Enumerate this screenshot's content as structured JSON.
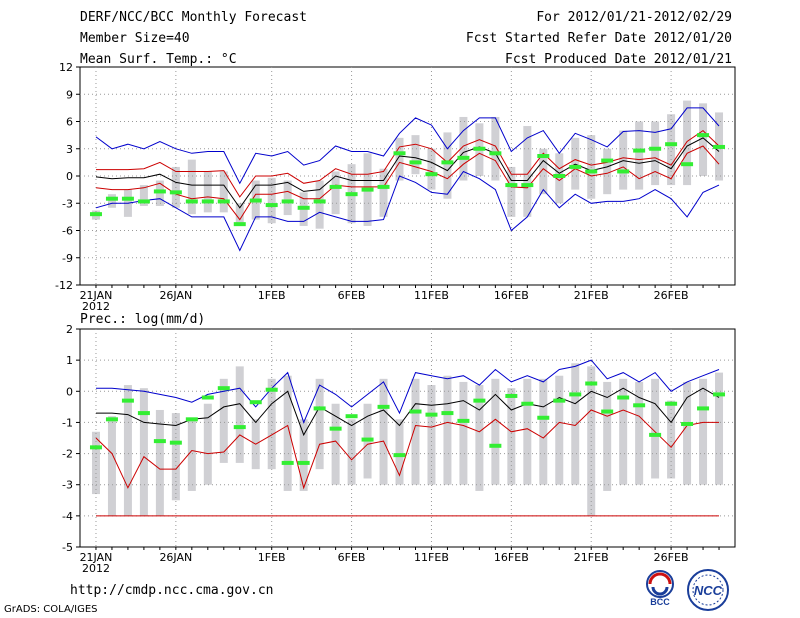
{
  "header": {
    "left_line1": "DERF/NCC/BCC Monthly Forecast",
    "left_line2": "Member Size=40",
    "left_line3": "Mean Surf. Temp.: °C",
    "right_line1": "For 2012/01/21-2012/02/29",
    "right_line2": "Fcst Started Refer Date 2012/01/20",
    "right_line3": "Fcst Produced Date 2012/01/21"
  },
  "footer": {
    "url": "http://cmdp.ncc.cma.gov.cn",
    "credit": "GrADS: COLA/IGES"
  },
  "logos": {
    "bcc": "BCC",
    "ncc": "NCC"
  },
  "colors": {
    "max_min": "#0000cc",
    "spread": "#cc0000",
    "mean": "#000000",
    "obs": "#33ee33",
    "box": "#d0d0d4",
    "grid": "#999999"
  },
  "chart_data": [
    {
      "type": "line",
      "title": "Mean Surf. Temp.: °C",
      "ylim": [
        -12,
        12
      ],
      "yticks": [
        "12",
        "9",
        "6",
        "3",
        "0",
        "-3",
        "-6",
        "-9",
        "-12"
      ],
      "xticklabels": [
        "21JAN",
        "26JAN",
        "1FEB",
        "6FEB",
        "11FEB",
        "16FEB",
        "21FEB",
        "26FEB"
      ],
      "year_label": "2012",
      "x": [
        1,
        2,
        3,
        4,
        5,
        6,
        7,
        8,
        9,
        10,
        11,
        12,
        13,
        14,
        15,
        16,
        17,
        18,
        19,
        20,
        21,
        22,
        23,
        24,
        25,
        26,
        27,
        28,
        29,
        30,
        31,
        32,
        33,
        34,
        35,
        36,
        37,
        38,
        39,
        40
      ],
      "series": [
        {
          "name": "max",
          "values": [
            4.3,
            3,
            3.5,
            3,
            3.8,
            3,
            2.5,
            2.7,
            2.7,
            -0.8,
            2.5,
            2.2,
            2.7,
            1.2,
            1.7,
            3.3,
            2.7,
            2.7,
            2.2,
            4.7,
            6.4,
            5.6,
            3,
            5,
            6.4,
            6.4,
            2.7,
            4.2,
            5,
            2.5,
            4.7,
            4,
            3.2,
            4.9,
            5,
            4.8,
            5.2,
            7.5,
            7.5,
            5.5
          ]
        },
        {
          "name": "upper",
          "values": [
            0.7,
            0.7,
            0.7,
            0.8,
            1.5,
            0.5,
            0.5,
            0.5,
            0.6,
            -2.3,
            0,
            0,
            0.3,
            -0.8,
            -0.5,
            0.8,
            0.2,
            0.2,
            0.5,
            3.2,
            3.5,
            3,
            1.5,
            3.3,
            4,
            3.3,
            0.2,
            0.2,
            2.5,
            0.8,
            1.8,
            1.2,
            1.5,
            2,
            1.8,
            2,
            1.2,
            3.8,
            5,
            3.3
          ]
        },
        {
          "name": "mean",
          "values": [
            -0.1,
            -0.3,
            -0.2,
            -0.2,
            0.2,
            -0.7,
            -1,
            -1,
            -1,
            -3.5,
            -1,
            -1,
            -0.7,
            -1.7,
            -1.5,
            0,
            -0.5,
            -0.5,
            -0.5,
            2.2,
            2,
            1.5,
            0.6,
            2.6,
            3.2,
            2.5,
            -0.5,
            -0.5,
            1.7,
            0.3,
            1.3,
            0.6,
            1,
            1.7,
            1.4,
            1.7,
            0.8,
            3.3,
            4.2,
            2.7
          ]
        },
        {
          "name": "lower",
          "values": [
            -1.3,
            -1.5,
            -1.5,
            -1.3,
            -0.8,
            -2,
            -2.5,
            -2.3,
            -2.5,
            -4.8,
            -2,
            -2,
            -1.7,
            -2.5,
            -2.5,
            -1,
            -1.2,
            -1.2,
            -1.2,
            1.5,
            1,
            0.5,
            -0.3,
            1.3,
            2.5,
            1.7,
            -1.2,
            -1.3,
            0.8,
            -0.5,
            0.8,
            0,
            0.3,
            1,
            -0.3,
            0.5,
            -0.3,
            2.5,
            3.3,
            1.3
          ]
        },
        {
          "name": "min",
          "values": [
            -3.5,
            -3,
            -3,
            -2.7,
            -2.5,
            -3.5,
            -4.5,
            -4.5,
            -4.5,
            -8.2,
            -4.5,
            -4.5,
            -5,
            -5,
            -4,
            -4.5,
            -5,
            -5,
            -4.8,
            0,
            -0.7,
            -1.8,
            -2,
            0.5,
            -0.3,
            -1.5,
            -6,
            -4.5,
            -1.5,
            -3.5,
            -2,
            -3,
            -2.8,
            -2.8,
            -2.5,
            -1.5,
            -2.5,
            -4.5,
            -1.8,
            -1
          ]
        },
        {
          "name": "obs",
          "values": [
            -4.2,
            -2.5,
            -2.5,
            -2.8,
            -1.7,
            -1.8,
            -2.8,
            -2.8,
            -2.8,
            -5.3,
            -2.7,
            -3.2,
            -2.8,
            -3.5,
            -2.8,
            -1.2,
            -2,
            -1.5,
            -1.2,
            2.5,
            1.5,
            0.2,
            1.5,
            2,
            3,
            2.5,
            -1,
            -1,
            2.2,
            0,
            1,
            0.5,
            1.7,
            0.5,
            2.8,
            3,
            3.5,
            1.3,
            4.5,
            3.2
          ]
        },
        {
          "name": "box_top",
          "values": [
            -3.8,
            -2,
            -1.5,
            -1,
            -0.5,
            1,
            1.8,
            0.5,
            0.5,
            -3,
            -0.5,
            -0.2,
            -0.5,
            -1.8,
            -0.5,
            0.5,
            1.3,
            2.5,
            0.8,
            4.2,
            4.5,
            3,
            4.8,
            6.5,
            5.8,
            6.5,
            1,
            5.5,
            3,
            2.5,
            4.2,
            4.5,
            3,
            5,
            6,
            6,
            6.8,
            8.3,
            8,
            7
          ]
        },
        {
          "name": "box_bottom",
          "values": [
            -4.8,
            -3.5,
            -4.5,
            -3.3,
            -3.3,
            -3.5,
            -4.2,
            -4,
            -4,
            -5.5,
            -4.8,
            -5.2,
            -4.3,
            -5.5,
            -5.8,
            -4.2,
            -5.2,
            -5.5,
            -4.5,
            -0.5,
            0.2,
            -1.5,
            -2.5,
            -0.5,
            0,
            -0.5,
            -4.5,
            -4.5,
            -2,
            -3,
            -1.5,
            -2.5,
            -2,
            -1.5,
            -1.5,
            -1,
            -1,
            -1,
            0,
            -0.5
          ]
        }
      ]
    },
    {
      "type": "line",
      "title": "Prec.: log(mm/d)",
      "ylim": [
        -5,
        2
      ],
      "yticks": [
        "2",
        "1",
        "0",
        "-1",
        "-2",
        "-3",
        "-4",
        "-5"
      ],
      "xticklabels": [
        "21JAN",
        "26JAN",
        "1FEB",
        "6FEB",
        "11FEB",
        "16FEB",
        "21FEB",
        "26FEB"
      ],
      "year_label": "2012",
      "x": [
        1,
        2,
        3,
        4,
        5,
        6,
        7,
        8,
        9,
        10,
        11,
        12,
        13,
        14,
        15,
        16,
        17,
        18,
        19,
        20,
        21,
        22,
        23,
        24,
        25,
        26,
        27,
        28,
        29,
        30,
        31,
        32,
        33,
        34,
        35,
        36,
        37,
        38,
        39,
        40
      ],
      "series": [
        {
          "name": "max",
          "values": [
            0.1,
            0.1,
            0.05,
            0,
            -0.1,
            -0.2,
            -0.35,
            -0.1,
            0,
            0.1,
            -0.5,
            0.1,
            0.6,
            -1,
            0.2,
            -0.1,
            -0.5,
            -0.1,
            0.3,
            -0.7,
            0.6,
            0.5,
            0.4,
            0.5,
            0.2,
            0.7,
            0.3,
            0.5,
            0.3,
            0.7,
            0.8,
            1,
            0.4,
            0.6,
            0.3,
            0.6,
            0,
            0.3,
            0.5,
            0.7
          ]
        },
        {
          "name": "mean",
          "values": [
            -0.7,
            -0.7,
            -0.75,
            -1,
            -1.05,
            -1.1,
            -0.9,
            -0.85,
            -0.5,
            -0.4,
            -1,
            -0.4,
            0,
            -1.4,
            -0.5,
            -0.8,
            -1.1,
            -0.8,
            -0.6,
            -1.1,
            -0.4,
            -0.45,
            -0.4,
            -0.3,
            -0.6,
            -0.1,
            -0.6,
            -0.4,
            -0.5,
            -0.2,
            -0.4,
            0,
            -0.2,
            0.1,
            -0.2,
            -0.4,
            -1,
            -0.2,
            0.1,
            -0.2
          ]
        },
        {
          "name": "lower",
          "values": [
            -1.5,
            -2,
            -3.1,
            -2.1,
            -2.5,
            -2.5,
            -1.9,
            -2,
            -1.95,
            -1.4,
            -1.7,
            -1.4,
            -1.1,
            -3.1,
            -1.7,
            -1.6,
            -2.2,
            -1.7,
            -1.6,
            -2.7,
            -1.1,
            -1.15,
            -1,
            -1.1,
            -1.3,
            -0.9,
            -1.3,
            -1.2,
            -1.5,
            -1,
            -1.1,
            -0.6,
            -0.8,
            -0.6,
            -0.8,
            -1.3,
            -1.8,
            -1.1,
            -1,
            -1
          ]
        },
        {
          "name": "min",
          "values": [
            -4,
            -4,
            -4,
            -4,
            -4,
            -4,
            -4,
            -4,
            -4,
            -4,
            -4,
            -4,
            -4,
            -4,
            -4,
            -4,
            -4,
            -4,
            -4,
            -4,
            -4,
            -4,
            -4,
            -4,
            -4,
            -4,
            -4,
            -4,
            -4,
            -4,
            -4,
            -4,
            -4,
            -4,
            -4,
            -4,
            -4,
            -4,
            -4,
            -4
          ]
        },
        {
          "name": "obs",
          "values": [
            -1.8,
            -0.9,
            -0.3,
            -0.7,
            -1.6,
            -1.65,
            -0.9,
            -0.2,
            0.1,
            -1.15,
            -0.35,
            0.05,
            -2.3,
            -2.3,
            -0.55,
            -1.2,
            -0.8,
            -1.55,
            -0.5,
            -2.05,
            -0.65,
            -0.75,
            -0.7,
            -0.95,
            -0.3,
            -1.75,
            -0.15,
            -0.4,
            -0.85,
            -0.3,
            -0.1,
            0.25,
            -0.65,
            -0.2,
            -0.45,
            -1.4,
            -0.4,
            -1.05,
            -0.55,
            -0.1
          ]
        },
        {
          "name": "box_top",
          "values": [
            -1.3,
            -0.8,
            0.2,
            0.1,
            -0.6,
            -0.7,
            -0.9,
            -0.4,
            0.4,
            0.8,
            -0.9,
            0.4,
            0.5,
            -0.9,
            0.4,
            -0.4,
            -0.9,
            -0.4,
            0.4,
            -0.9,
            0.4,
            0.2,
            0.5,
            0.3,
            0.2,
            0.4,
            0.1,
            0.4,
            0.4,
            0.5,
            0.9,
            0.8,
            0.3,
            0.4,
            0.3,
            0.4,
            -0.3,
            0.3,
            0.4,
            0.6
          ]
        },
        {
          "name": "box_bottom",
          "values": [
            -3.3,
            -4,
            -4,
            -4,
            -4,
            -3.5,
            -3.2,
            -3,
            -2.3,
            -2.3,
            -2.5,
            -2.5,
            -3.2,
            -3.2,
            -2.5,
            -3,
            -3,
            -2.8,
            -3,
            -3,
            -3,
            -3,
            -3,
            -3,
            -3.2,
            -3,
            -3,
            -3,
            -3,
            -3,
            -3,
            -4,
            -3.2,
            -3,
            -3,
            -2.8,
            -2.8,
            -3,
            -3,
            -3
          ]
        }
      ]
    }
  ]
}
